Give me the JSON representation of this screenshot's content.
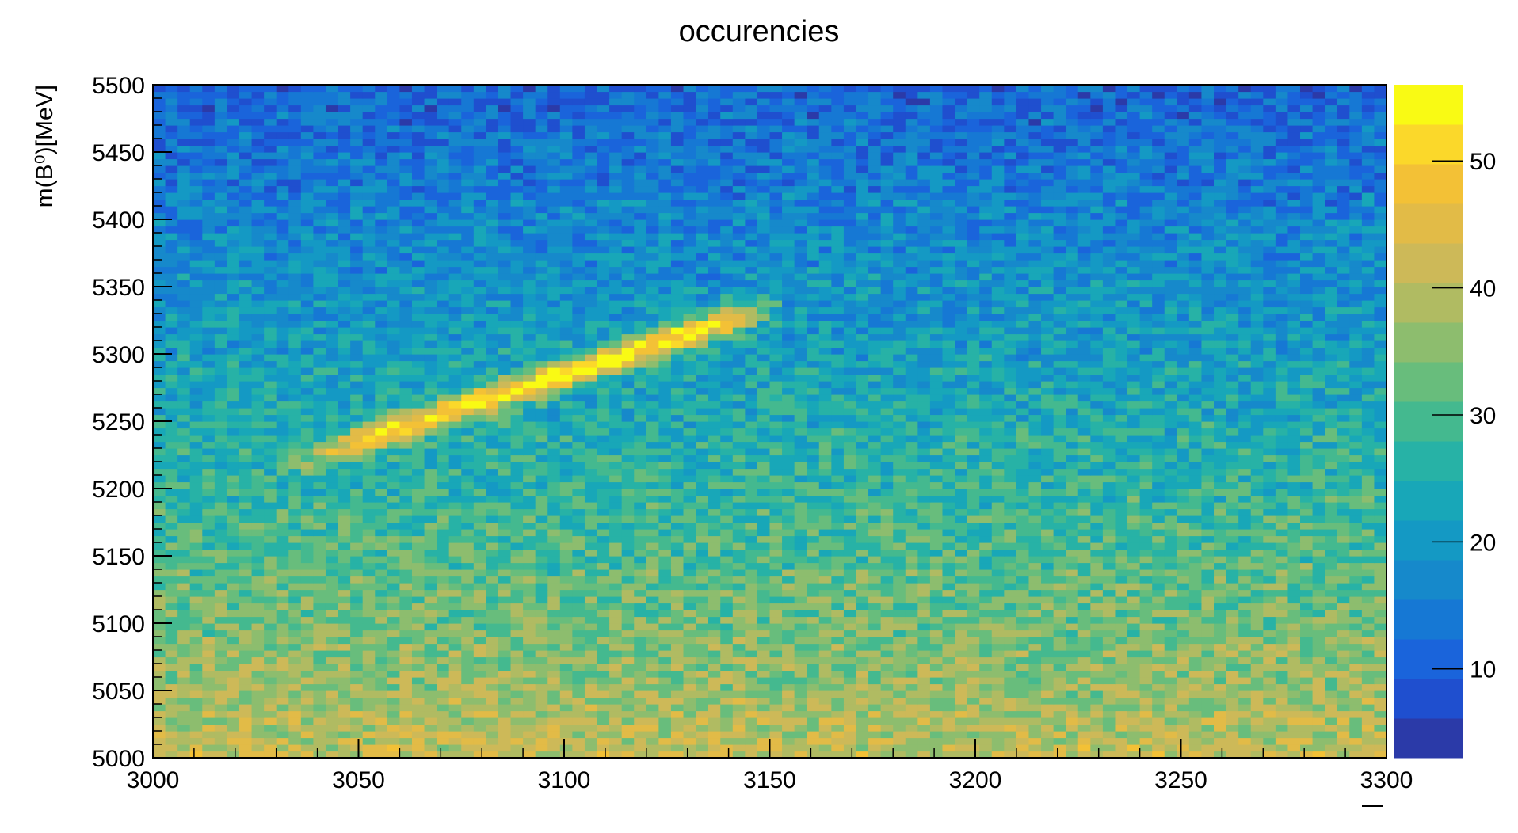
{
  "chart_data": {
    "type": "heatmap",
    "title": "occurencies",
    "ylabel": "m(B⁰)[MeV]",
    "xlabel": "",
    "xlim": [
      3000,
      3300
    ],
    "ylim": [
      5000,
      5500
    ],
    "x_ticks": [
      "3000",
      "3050",
      "3100",
      "3150",
      "3200",
      "3250",
      "3300"
    ],
    "y_ticks": [
      "5000",
      "5050",
      "5100",
      "5150",
      "5200",
      "5250",
      "5300",
      "5350",
      "5400",
      "5450",
      "5500"
    ],
    "colorbar": {
      "range": [
        3,
        56
      ],
      "ticks": [
        "10",
        "20",
        "30",
        "40",
        "50"
      ],
      "palette": [
        "#2b3aa8",
        "#1f4fcf",
        "#1a64db",
        "#1678d4",
        "#1689cb",
        "#1499c4",
        "#18a7b8",
        "#27b2a6",
        "#44b98f",
        "#68bd7c",
        "#8dbd6e",
        "#b0bb62",
        "#cdb958",
        "#e2bb47",
        "#f3c136",
        "#fbd82a",
        "#f9fa14"
      ]
    },
    "bins": {
      "nx": 100,
      "ny": 100
    },
    "features": [
      {
        "description": "signal band",
        "x": [
          3050,
          3145
        ],
        "y": [
          5235,
          5330
        ],
        "peak_counts": 55
      },
      {
        "description": "background gradient",
        "y_low_counts": 42,
        "y_high_counts": 10
      }
    ]
  }
}
